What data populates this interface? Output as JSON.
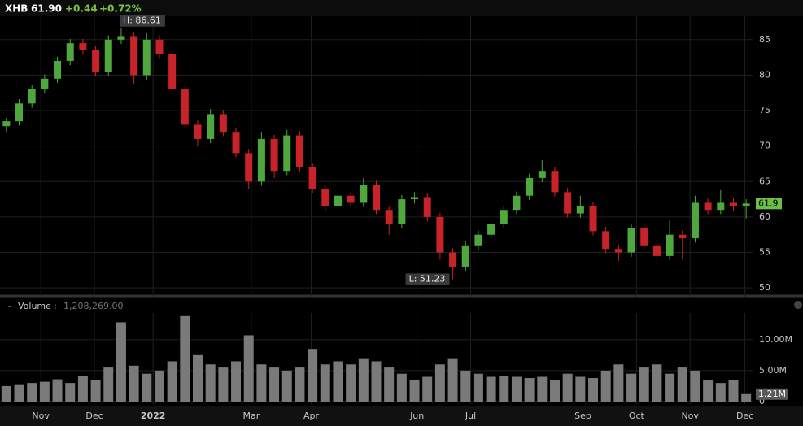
{
  "header": {
    "symbol": "XHB",
    "price": "61.90",
    "change": "+0.44",
    "change_pct": "+0.72%"
  },
  "chart_data": [
    {
      "type": "candlestick",
      "up_color": "#4fa83d",
      "down_color": "#c8232a",
      "open": [
        72.8,
        73.5,
        76,
        78,
        79.5,
        82,
        84.5,
        83.5,
        80.5,
        85,
        85.5,
        80,
        85,
        83,
        78,
        73,
        71,
        74.5,
        72,
        69,
        65,
        71,
        66.5,
        71.5,
        67,
        64,
        61.5,
        63,
        62,
        64.5,
        61,
        59,
        62.5,
        62.8,
        60,
        55,
        53,
        56,
        57.5,
        59,
        61,
        63,
        65.5,
        66.5,
        63.5,
        60.5,
        61.5,
        58,
        55.5,
        55,
        58.5,
        56,
        54.5,
        57.5,
        57,
        62,
        61,
        62,
        61.5
      ],
      "high": [
        74,
        76.6,
        78.6,
        80.1,
        82.6,
        85.1,
        85.1,
        84.1,
        85.6,
        86.61,
        86.1,
        86,
        85.6,
        83.6,
        78.6,
        73.6,
        75.2,
        75.1,
        72.6,
        69.6,
        72,
        71.6,
        72.3,
        72.1,
        67.6,
        64.6,
        63.6,
        63.6,
        65.5,
        65.1,
        61.6,
        63.1,
        63.5,
        63.4,
        60.6,
        55.6,
        56.6,
        58.1,
        59.6,
        61.6,
        63.6,
        66.1,
        68,
        67.1,
        64.1,
        63,
        62.1,
        58.6,
        56.1,
        59,
        59.1,
        56.6,
        59.5,
        58.1,
        63,
        62.6,
        63.8,
        62.6,
        62.5
      ],
      "low": [
        72,
        72.9,
        75.4,
        77.4,
        78.9,
        81.4,
        82.9,
        79.8,
        79.9,
        84.4,
        78.8,
        79.4,
        82.4,
        77.5,
        72.4,
        70,
        70.4,
        71.4,
        68.4,
        64,
        64.4,
        65.5,
        65.9,
        66.4,
        63.4,
        60.9,
        60.9,
        61.4,
        61.4,
        60.4,
        57.5,
        58.4,
        61.9,
        59.4,
        54,
        51.23,
        52.4,
        55.4,
        56.9,
        58.4,
        60.4,
        62.4,
        64.9,
        62.9,
        59.9,
        59.9,
        57.4,
        54.9,
        53.8,
        54.4,
        55.4,
        53.2,
        53.9,
        54,
        56.4,
        60.4,
        60.4,
        60.9,
        59.8
      ],
      "close": [
        73.5,
        76,
        78,
        79.5,
        82,
        84.5,
        83.5,
        80.5,
        85,
        85.5,
        80,
        85,
        83,
        78,
        73,
        71,
        74.5,
        72,
        69,
        65,
        71,
        66.5,
        71.5,
        67,
        64,
        61.5,
        63,
        62,
        64.5,
        61,
        59,
        62.5,
        62.8,
        60,
        55,
        53,
        56,
        57.5,
        59,
        61,
        63,
        65.5,
        66.5,
        63.5,
        60.5,
        61.5,
        58,
        55.5,
        55,
        58.5,
        56,
        54.5,
        57.5,
        57,
        62,
        61,
        62,
        61.5,
        61.9
      ],
      "ylim": [
        49.1,
        88.3
      ],
      "yticks": [
        50,
        55,
        60,
        65,
        70,
        75,
        80,
        85
      ],
      "high_label": "H: 86.61",
      "low_label": "L: 51.23",
      "last_price": 61.9,
      "last_color": "#6cc04a"
    },
    {
      "type": "bar",
      "title": "Volume",
      "readout": "1,208,269.00",
      "color": "#7a7a7a",
      "values": [
        2.5,
        2.8,
        3.0,
        3.2,
        3.6,
        3.0,
        4.2,
        3.5,
        5.5,
        12.8,
        5.8,
        4.5,
        5.0,
        6.5,
        13.8,
        7.5,
        6.0,
        5.5,
        6.5,
        10.7,
        6.0,
        5.5,
        5.0,
        5.5,
        8.5,
        6.0,
        6.5,
        6.0,
        7.0,
        6.5,
        5.5,
        4.5,
        3.5,
        4.0,
        6.0,
        7.0,
        5.0,
        4.5,
        4.0,
        4.2,
        4.0,
        3.8,
        4.0,
        3.5,
        4.5,
        4.0,
        3.8,
        5.0,
        6.0,
        4.5,
        5.5,
        6.0,
        4.5,
        5.5,
        5.0,
        3.5,
        3.0,
        3.5,
        1.21
      ],
      "ylim": [
        0,
        14.3
      ],
      "yticks": [
        0,
        {
          "value": 5,
          "label": "5.00M"
        },
        {
          "value": 10,
          "label": "10.00M"
        }
      ],
      "last_volume": {
        "value": 1.21,
        "label": "1.21M"
      },
      "xlim": [
        0,
        59
      ],
      "xticks": [
        {
          "value": 3.2,
          "label": "Nov"
        },
        {
          "value": 7.4,
          "label": "Dec"
        },
        {
          "value": 12.0,
          "label": "2022"
        },
        {
          "value": 19.7,
          "label": "Mar"
        },
        {
          "value": 24.4,
          "label": "Apr"
        },
        {
          "value": 32.7,
          "label": "Jun"
        },
        {
          "value": 36.9,
          "label": "Jul"
        },
        {
          "value": 45.7,
          "label": "Sep"
        },
        {
          "value": 49.9,
          "label": "Oct"
        },
        {
          "value": 54.1,
          "label": "Nov"
        },
        {
          "value": 58.4,
          "label": "Dec"
        }
      ]
    }
  ]
}
